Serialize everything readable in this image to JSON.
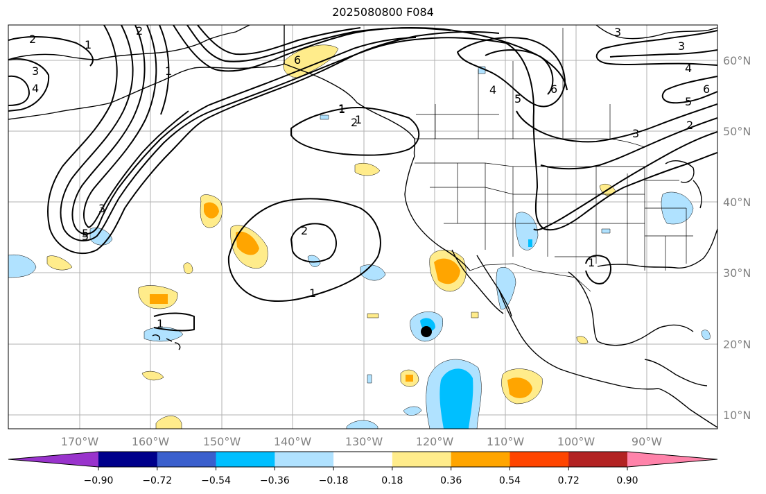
{
  "title": "2025080800 F084",
  "map": {
    "lon_ticks": [
      "170°W",
      "160°W",
      "150°W",
      "140°W",
      "130°W",
      "120°W",
      "110°W",
      "100°W",
      "90°W"
    ],
    "lat_ticks": [
      "60°N",
      "50°N",
      "40°N",
      "30°N",
      "20°N",
      "10°N"
    ],
    "gridlines": true,
    "contour_labels": [
      "2",
      "1",
      "3",
      "4",
      "5",
      "6",
      "5",
      "4",
      "3",
      "2",
      "1",
      "3",
      "4",
      "5",
      "6",
      "6",
      "1",
      "2",
      "3",
      "5",
      "2",
      "1",
      "1",
      "1",
      "1",
      "1",
      "3",
      "2"
    ],
    "marker": "storm-center-dot"
  },
  "colorbar": {
    "ticks": [
      "−0.90",
      "−0.72",
      "−0.54",
      "−0.36",
      "−0.18",
      "0.18",
      "0.36",
      "0.54",
      "0.72",
      "0.90"
    ],
    "colors": [
      "#9933cc",
      "#00008b",
      "#3a5fcd",
      "#00bfff",
      "#b0e2ff",
      "#ffffff",
      "#ffec8b",
      "#ffa500",
      "#ff4500",
      "#b22222",
      "#ff83aa"
    ]
  }
}
